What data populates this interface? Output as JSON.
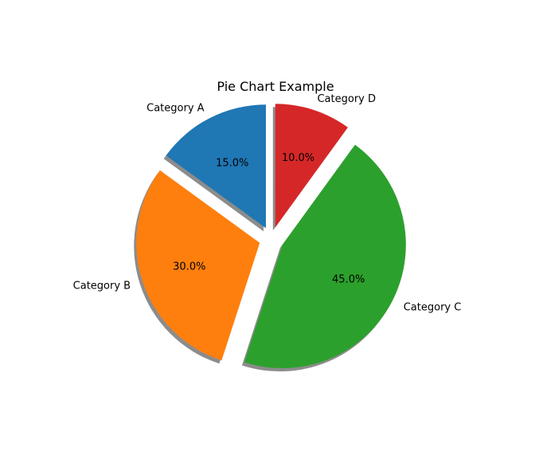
{
  "chart_data": {
    "type": "pie",
    "title": "Pie Chart Example",
    "categories": [
      "Category A",
      "Category B",
      "Category C",
      "Category D"
    ],
    "values": [
      15,
      30,
      45,
      10
    ],
    "percent_labels": [
      "15.0%",
      "30.0%",
      "45.0%",
      "10.0%"
    ],
    "colors": [
      "#1f77b4",
      "#ff7f0e",
      "#2ca02c",
      "#d62728"
    ],
    "explode": [
      0.1,
      0.1,
      0.1,
      0.1
    ],
    "start_angle": 90,
    "shadow": true
  }
}
